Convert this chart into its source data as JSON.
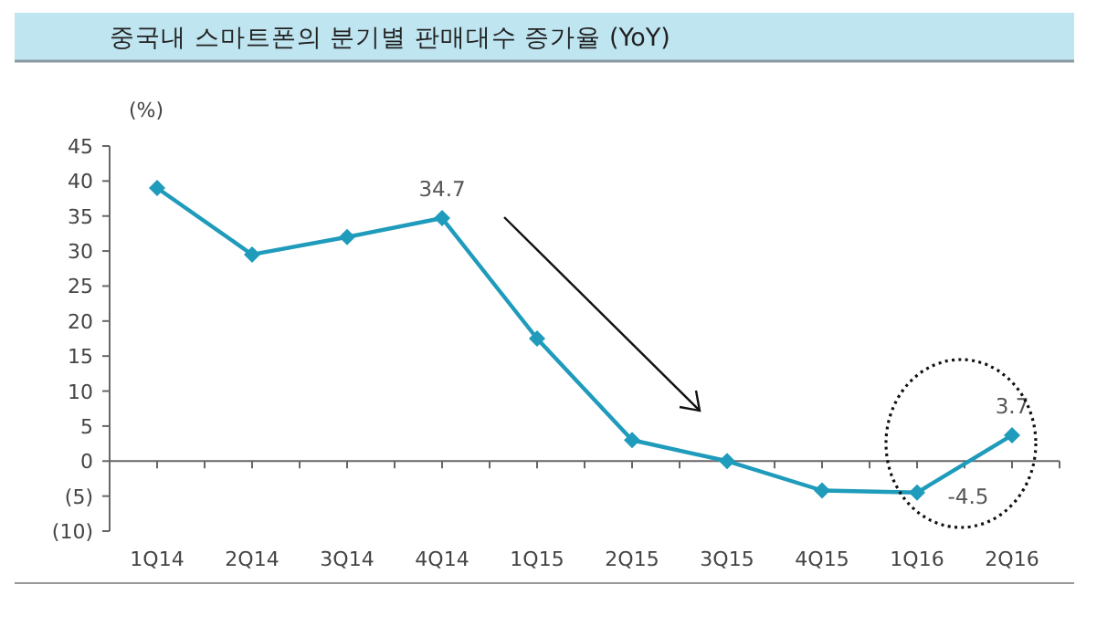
{
  "chart_data": {
    "type": "line",
    "title": "중국내 스마트폰의 분기별 판매대수 증가율 (YoY)",
    "ylabel": "(%)",
    "categories": [
      "1Q14",
      "2Q14",
      "3Q14",
      "4Q14",
      "1Q15",
      "2Q15",
      "3Q15",
      "4Q15",
      "1Q16",
      "2Q16"
    ],
    "series": [
      {
        "color": "#1f9bbb",
        "values": [
          39,
          29.5,
          32,
          34.7,
          17.5,
          3,
          0,
          -4.2,
          -4.5,
          3.7
        ],
        "value_labels": [
          null,
          null,
          null,
          "34.7",
          null,
          null,
          null,
          null,
          "-4.5",
          "3.7"
        ]
      }
    ],
    "ylim": [
      -10,
      45
    ],
    "yticks": [
      {
        "value": -10,
        "label": "(10)"
      },
      {
        "value": -5,
        "label": "(5)"
      },
      0,
      5,
      10,
      15,
      20,
      25,
      30,
      35,
      40,
      45
    ],
    "marker": "diamond",
    "line_style": "solid"
  }
}
